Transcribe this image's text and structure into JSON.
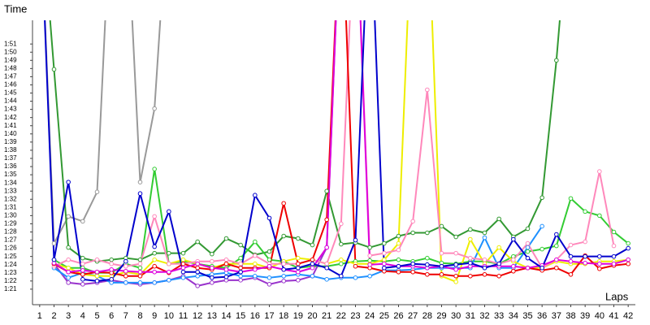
{
  "chart_data": {
    "type": "line",
    "y_label": "Time",
    "x_label": "Laps",
    "x": [
      1,
      2,
      3,
      4,
      5,
      6,
      7,
      8,
      9,
      10,
      11,
      12,
      13,
      14,
      15,
      16,
      17,
      18,
      19,
      20,
      21,
      22,
      23,
      24,
      25,
      26,
      27,
      28,
      29,
      30,
      31,
      32,
      33,
      34,
      35,
      36,
      37,
      38,
      39,
      40,
      41,
      42
    ],
    "xlim": [
      0.5,
      42.5
    ],
    "xticks": [
      1,
      2,
      3,
      4,
      5,
      6,
      7,
      8,
      9,
      10,
      11,
      12,
      13,
      14,
      15,
      16,
      17,
      18,
      19,
      20,
      21,
      22,
      23,
      24,
      25,
      26,
      27,
      28,
      29,
      30,
      31,
      32,
      33,
      34,
      35,
      36,
      37,
      38,
      39,
      40,
      41,
      42
    ],
    "ylim": [
      79.1,
      113.9
    ],
    "yticks": [
      {
        "value": 81,
        "label": "1:21"
      },
      {
        "value": 82,
        "label": "1:22"
      },
      {
        "value": 83,
        "label": "1:23"
      },
      {
        "value": 84,
        "label": "1:24"
      },
      {
        "value": 85,
        "label": "1:25"
      },
      {
        "value": 86,
        "label": "1:26"
      },
      {
        "value": 87,
        "label": "1:27"
      },
      {
        "value": 88,
        "label": "1:28"
      },
      {
        "value": 89,
        "label": "1:29"
      },
      {
        "value": 90,
        "label": "1:30"
      },
      {
        "value": 91,
        "label": "1:31"
      },
      {
        "value": 92,
        "label": "1:32"
      },
      {
        "value": 93,
        "label": "1:33"
      },
      {
        "value": 94,
        "label": "1:34"
      },
      {
        "value": 95,
        "label": "1:35"
      },
      {
        "value": 96,
        "label": "1:36"
      },
      {
        "value": 97,
        "label": "1:37"
      },
      {
        "value": 98,
        "label": "1:38"
      },
      {
        "value": 99,
        "label": "1:39"
      },
      {
        "value": 100,
        "label": "1:40"
      },
      {
        "value": 101,
        "label": "1:41"
      },
      {
        "value": 102,
        "label": "1:42"
      },
      {
        "value": 103,
        "label": "1:43"
      },
      {
        "value": 104,
        "label": "1:44"
      },
      {
        "value": 105,
        "label": "1:45"
      },
      {
        "value": 106,
        "label": "1:46"
      },
      {
        "value": 107,
        "label": "1:47"
      },
      {
        "value": 108,
        "label": "1:48"
      },
      {
        "value": 109,
        "label": "1:49"
      },
      {
        "value": 110,
        "label": "1:50"
      },
      {
        "value": 111,
        "label": "1:51"
      }
    ],
    "series": [
      {
        "color": "#999999",
        "values": [
          130,
          86.6,
          89.9,
          89.3,
          92.9,
          130,
          130,
          94.1,
          103.1,
          130,
          null,
          null,
          null,
          null,
          null,
          null,
          null,
          null,
          null,
          null,
          null,
          null,
          null,
          null,
          null,
          null,
          null,
          null,
          null,
          null,
          null,
          null,
          null,
          null,
          null,
          null,
          null,
          null,
          null,
          null,
          null,
          null
        ]
      },
      {
        "color": "#339933",
        "values": [
          130,
          107.9,
          86.1,
          84.8,
          84.4,
          84.6,
          84.8,
          84.6,
          85.4,
          85.4,
          85.4,
          86.8,
          85.3,
          87.2,
          86.4,
          85.2,
          85.6,
          87.5,
          87.2,
          86.4,
          93.0,
          86.5,
          86.7,
          86.1,
          86.6,
          87.5,
          87.9,
          87.9,
          88.7,
          87.4,
          88.3,
          87.9,
          89.6,
          87.4,
          88.4,
          92.2,
          109.0,
          130,
          null,
          null,
          null,
          null
        ]
      },
      {
        "color": "#33cc33",
        "values": [
          null,
          84.6,
          83.6,
          83.6,
          83.0,
          83.0,
          84.1,
          83.6,
          95.7,
          84.1,
          84.4,
          84.1,
          83.8,
          83.6,
          84.8,
          86.8,
          84.6,
          84.4,
          83.6,
          83.8,
          83.8,
          84.1,
          84.4,
          84.5,
          84.4,
          84.6,
          84.4,
          84.8,
          84.2,
          84.1,
          84.4,
          84.4,
          84.1,
          85.0,
          85.6,
          85.9,
          86.3,
          92.1,
          90.5,
          90.0,
          88.0,
          86.6
        ]
      },
      {
        "color": "#9933cc",
        "values": [
          null,
          84.1,
          81.8,
          81.6,
          81.8,
          82.1,
          81.8,
          81.6,
          81.8,
          82.1,
          82.6,
          81.4,
          81.8,
          82.1,
          82.1,
          82.4,
          81.6,
          82.0,
          82.1,
          82.6,
          86.1,
          130,
          null,
          null,
          null,
          null,
          null,
          null,
          null,
          null,
          null,
          null,
          null,
          null,
          null,
          null,
          null,
          null,
          null,
          null,
          null,
          null
        ]
      },
      {
        "color": "#1e90ff",
        "values": [
          null,
          83.6,
          82.4,
          83.0,
          82.6,
          81.8,
          81.8,
          81.8,
          81.8,
          82.1,
          82.4,
          82.6,
          82.8,
          83.0,
          82.6,
          82.6,
          82.4,
          82.6,
          82.8,
          82.6,
          82.2,
          82.4,
          82.4,
          82.6,
          83.3,
          83.3,
          83.4,
          83.6,
          83.6,
          83.6,
          83.6,
          87.3,
          83.6,
          83.6,
          86.1,
          88.7,
          null,
          null,
          null,
          null,
          null,
          null
        ]
      },
      {
        "color": "#eeee00",
        "values": [
          null,
          84.1,
          83.6,
          82.8,
          82.6,
          82.6,
          83.1,
          82.8,
          84.6,
          84.1,
          84.6,
          84.1,
          83.6,
          84.1,
          84.1,
          84.1,
          83.6,
          84.4,
          84.8,
          84.6,
          84.1,
          84.6,
          84.1,
          84.1,
          84.6,
          86.6,
          130,
          130,
          82.6,
          81.9,
          87.1,
          84.1,
          86.1,
          84.4,
          83.6,
          83.6,
          84.4,
          84.1,
          84.1,
          84.4,
          84.4,
          84.6
        ]
      },
      {
        "color": "#ff88bb",
        "values": [
          null,
          83.8,
          84.6,
          84.1,
          84.6,
          84.1,
          83.8,
          84.1,
          89.9,
          84.1,
          84.1,
          84.4,
          84.4,
          84.6,
          84.1,
          85.1,
          84.1,
          84.1,
          84.1,
          84.6,
          84.1,
          89.0,
          130,
          85.1,
          85.4,
          85.8,
          89.3,
          105.4,
          85.4,
          85.4,
          84.8,
          84.6,
          84.1,
          84.6,
          86.6,
          83.6,
          84.6,
          86.4,
          86.8,
          95.4,
          86.3,
          null
        ]
      },
      {
        "color": "#ee0000",
        "values": [
          null,
          84.1,
          83.1,
          82.8,
          83.1,
          83.0,
          82.6,
          82.6,
          83.8,
          83.0,
          84.1,
          83.6,
          83.4,
          84.1,
          83.6,
          83.6,
          83.6,
          91.5,
          84.1,
          84.6,
          89.5,
          130,
          83.8,
          83.6,
          83.2,
          83.1,
          83.1,
          82.8,
          82.8,
          82.6,
          82.6,
          82.8,
          82.6,
          83.2,
          83.6,
          83.3,
          83.6,
          82.8,
          85.1,
          83.5,
          83.9,
          84.1
        ]
      },
      {
        "color": "#dd00dd",
        "values": [
          null,
          84.2,
          83.1,
          83.3,
          83.1,
          83.4,
          83.2,
          83.1,
          83.1,
          83.1,
          83.6,
          84.1,
          83.6,
          83.4,
          83.1,
          83.4,
          83.8,
          83.4,
          83.1,
          83.6,
          86.1,
          130,
          130,
          84.0,
          84.1,
          83.8,
          83.8,
          83.6,
          83.8,
          83.4,
          83.8,
          83.8,
          83.8,
          83.8,
          83.6,
          83.9,
          84.6,
          84.4,
          84.2,
          84.1,
          84.1,
          84.6
        ]
      },
      {
        "color": "#0000cc",
        "values": [
          130,
          84.6,
          94.1,
          82.2,
          82.0,
          82.2,
          84.4,
          92.7,
          86.2,
          90.5,
          83.1,
          83.1,
          82.4,
          82.5,
          83.1,
          92.5,
          89.7,
          83.4,
          83.6,
          84.1,
          83.6,
          82.6,
          87.0,
          130,
          83.6,
          83.8,
          84.1,
          84.0,
          83.8,
          84.0,
          84.2,
          83.6,
          84.1,
          87.1,
          84.8,
          83.6,
          87.7,
          85.0,
          85.0,
          85.0,
          85.0,
          86.0
        ]
      }
    ]
  }
}
